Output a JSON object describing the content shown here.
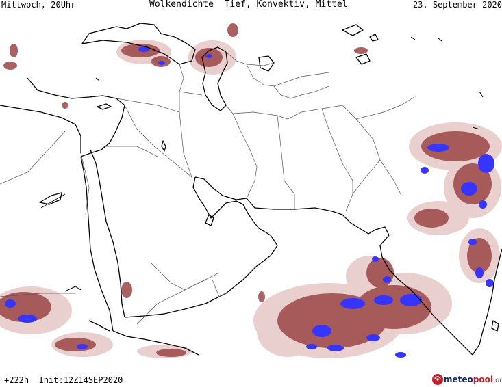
{
  "header": {
    "left": "Mittwoch, 20Uhr",
    "center": "Wolkendichte  Tief, Konvektiv, Mittel",
    "right": "23. September 2020"
  },
  "footer": {
    "run": "+222h  Init:12Z14SEP2020"
  },
  "logo": {
    "name_a": "meteo",
    "name_b": "pool",
    "tld": ".org",
    "icon": "storm-logo-icon"
  },
  "colors": {
    "cloud_light": "#e3c5c5",
    "cloud_medium": "#b86868",
    "cloud_dark": "#8c3c3c",
    "convective": "#3a3aff",
    "coastline": "#000000",
    "borders": "#555555"
  }
}
